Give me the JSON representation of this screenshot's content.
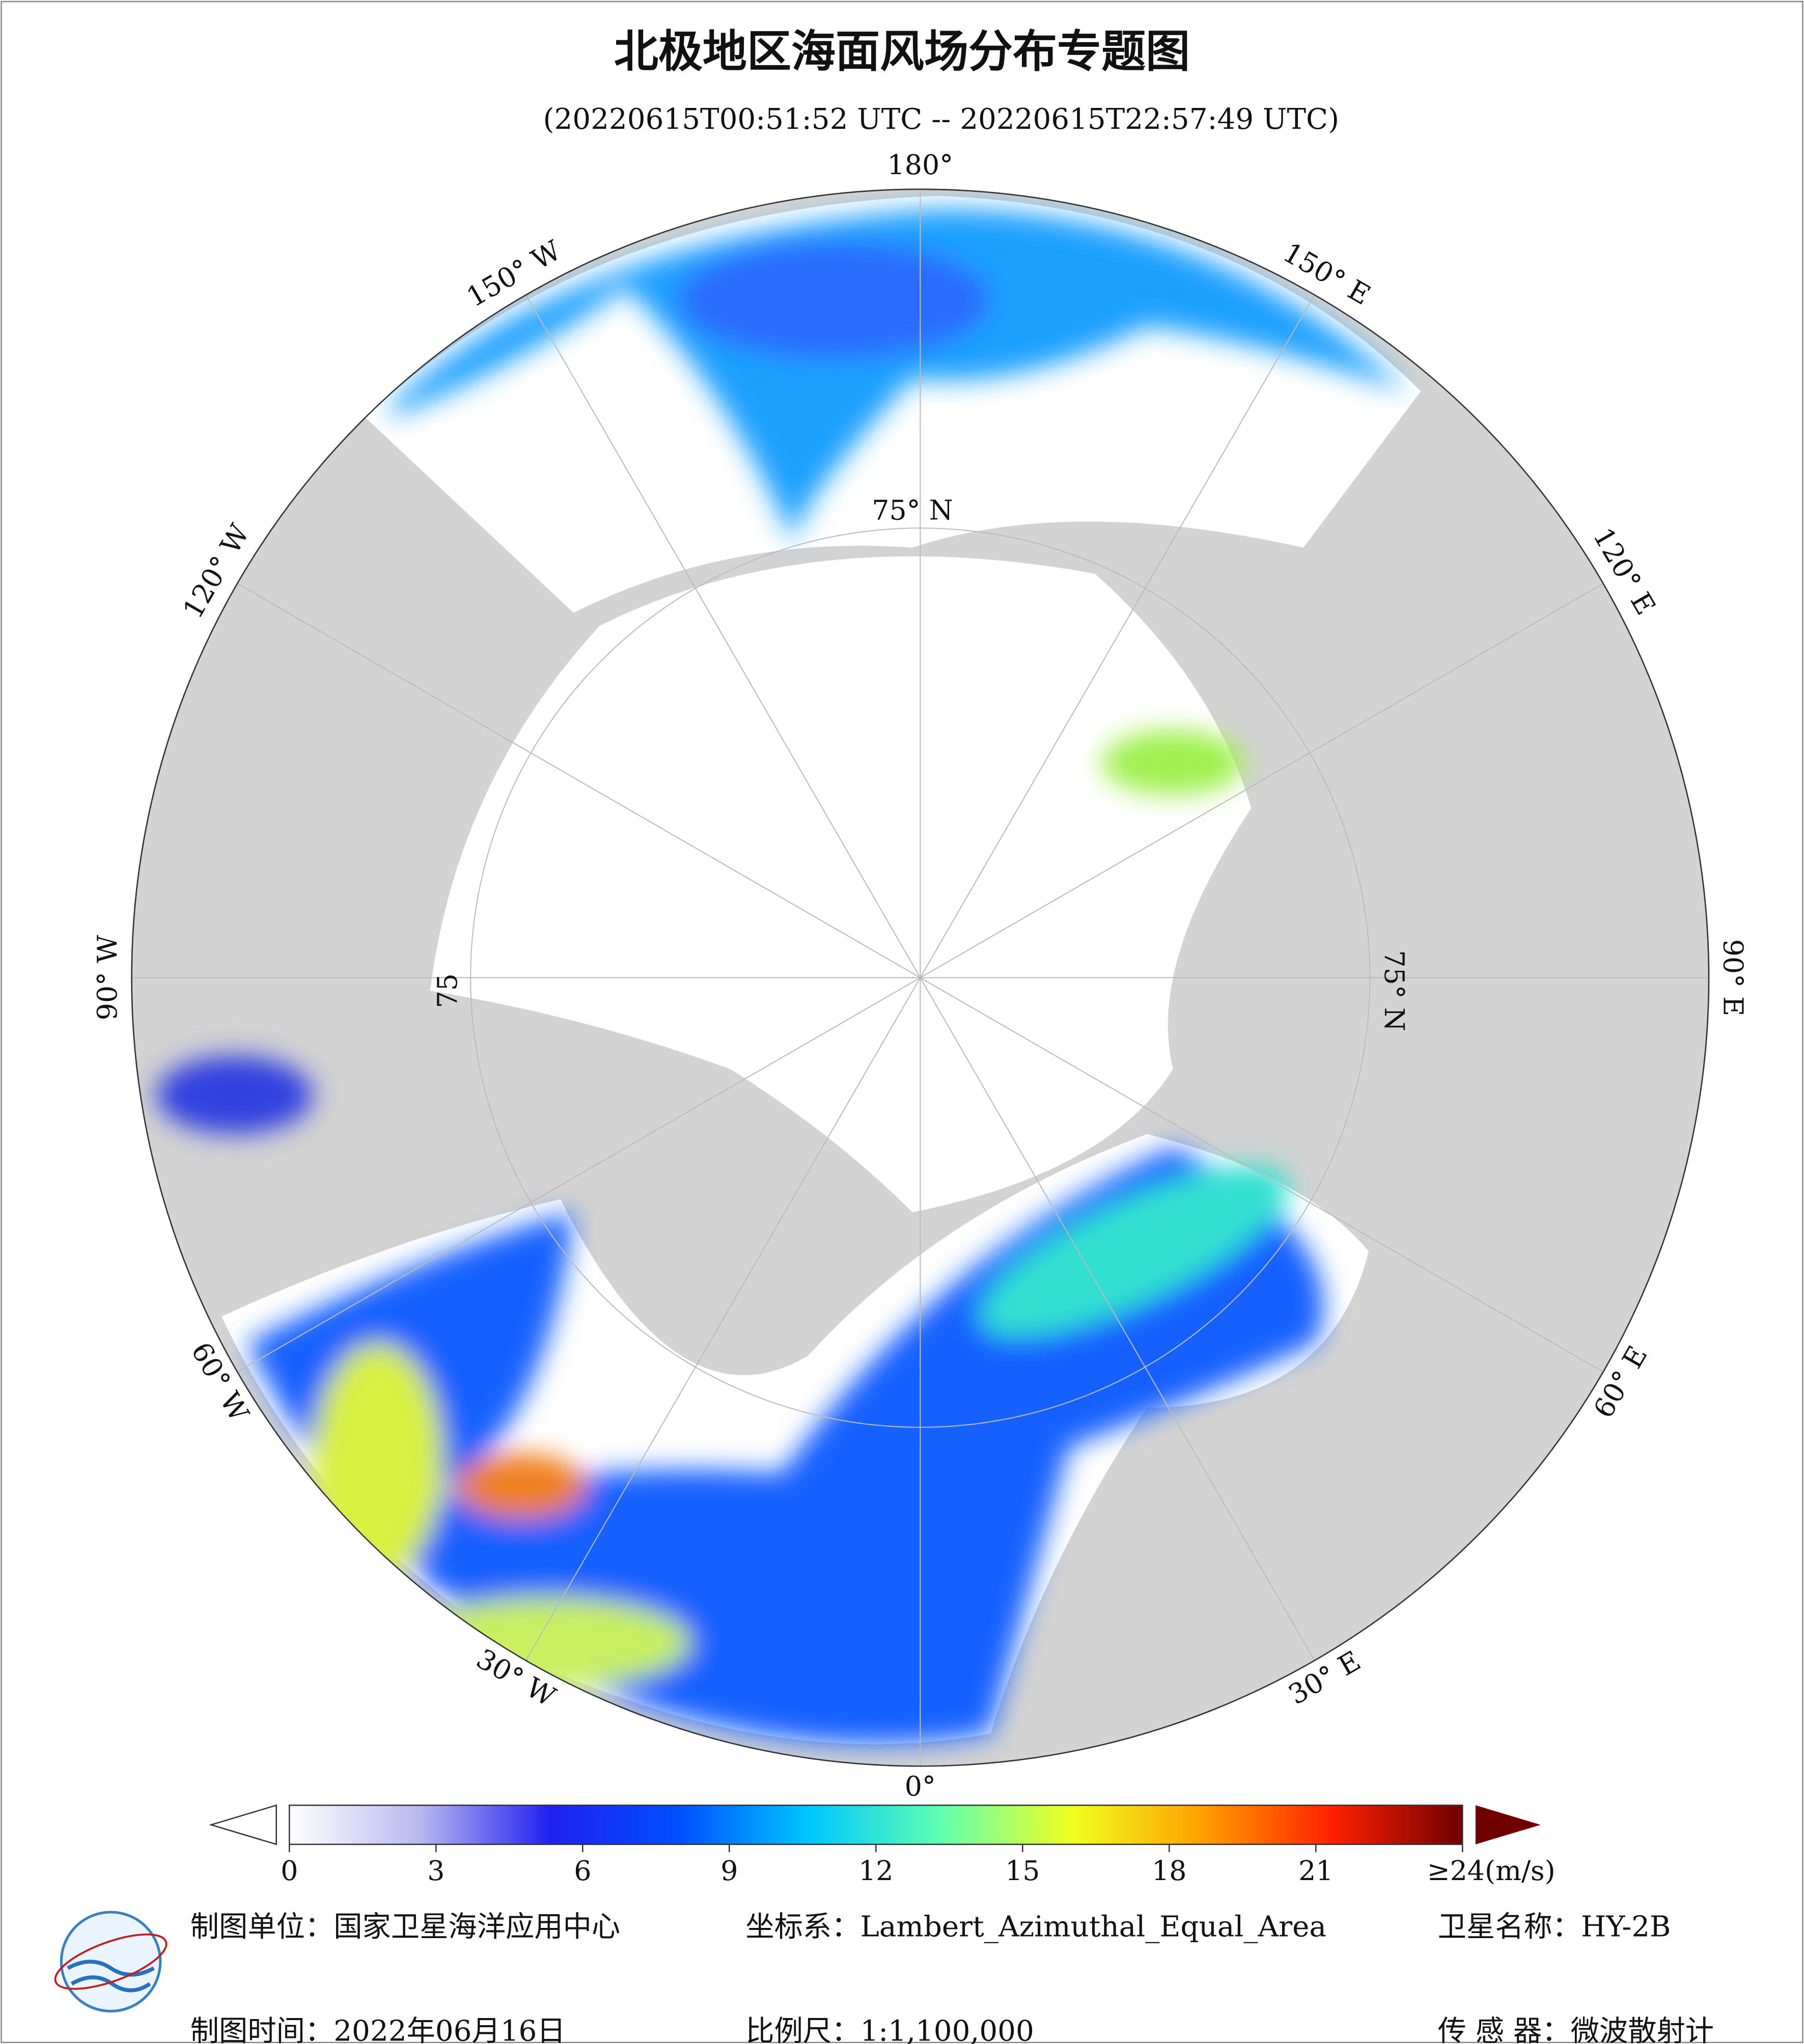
{
  "title": "北极地区海面风场分布专题图",
  "subtitle": "(20220615T00:51:52 UTC -- 20220615T22:57:49 UTC)",
  "longitude_labels": [
    "180°",
    "150° E",
    "120° E",
    "90° E",
    "60° E",
    "30° E",
    "0°",
    "30° W",
    "60° W",
    "90° W",
    "120° W",
    "150° W"
  ],
  "latitude_labels": [
    "75° N",
    "75° N",
    "75"
  ],
  "colorbar": {
    "range": [
      0,
      24
    ],
    "ticks": [
      0,
      3,
      6,
      9,
      12,
      15,
      18,
      21,
      {
        "value": 24,
        "label": "≥24(m/s)"
      }
    ],
    "colors": [
      "#ffffff",
      "#b8b8f0",
      "#2020f0",
      "#0050ff",
      "#00c8ff",
      "#60ffb0",
      "#f0ff20",
      "#ffa000",
      "#ff2000",
      "#700000"
    ]
  },
  "footer": [
    "制图单位：国家卫星海洋应用中心",
    "坐标系：Lambert_Azimuthal_Equal_Area",
    "卫星名称：HY-2B",
    "制图时间：2022年06月16日",
    "比例尺：1:1,100,000",
    "传 感 器：微波散射计"
  ]
}
